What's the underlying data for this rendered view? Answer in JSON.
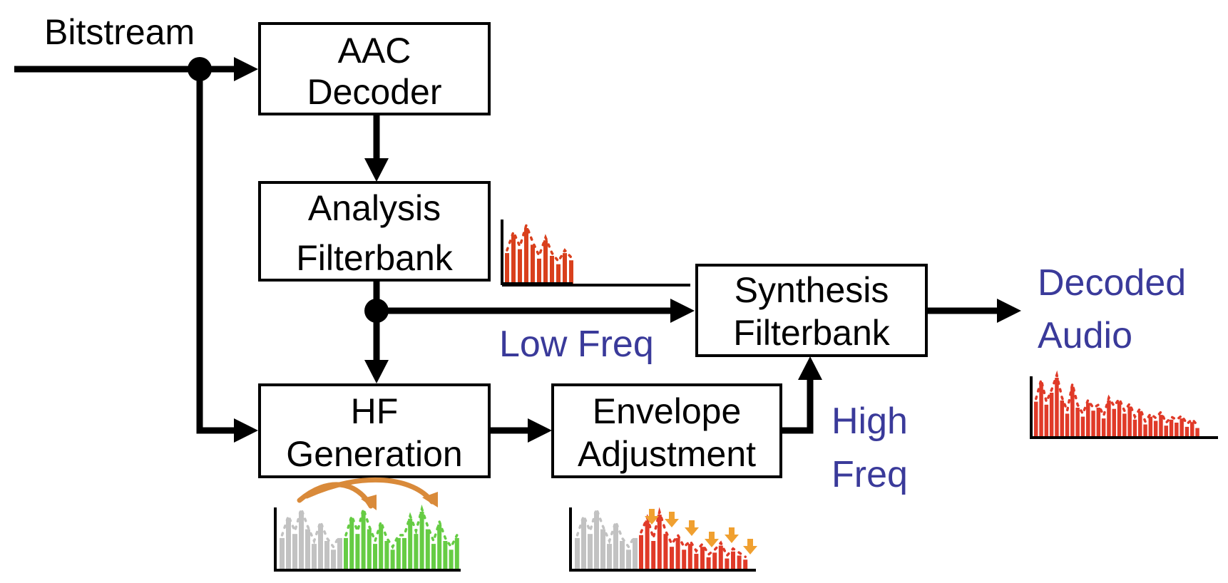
{
  "blocks": {
    "aac_decoder": [
      "AAC",
      "Decoder"
    ],
    "analysis_filterbank": [
      "Analysis",
      "Filterbank"
    ],
    "synthesis_filterbank": [
      "Synthesis",
      "Filterbank"
    ],
    "hf_generation": [
      "HF",
      "Generation"
    ],
    "envelope_adjustment": [
      "Envelope",
      "Adjustment"
    ]
  },
  "labels": {
    "bitstream": "Bitstream",
    "low_freq": "Low Freq",
    "high_freq": [
      "High",
      "Freq"
    ],
    "decoded_audio": [
      "Decoded",
      "Audio"
    ]
  },
  "colors": {
    "line": "#000000",
    "label_blue": "#3a3a9a",
    "low_band": "#d9401d",
    "gray_band": "#c2c2c2",
    "green_band": "#66cc44",
    "hf_copy_arrow": "#d98a3a",
    "gain_arrow": "#f0a030",
    "output_band": "#e03a28"
  },
  "spectra": {
    "low_band": [
      0.55,
      0.88,
      0.62,
      1.0,
      0.7,
      0.45,
      0.78,
      0.5,
      0.35,
      0.55,
      0.42
    ],
    "hf_generation": {
      "gray": [
        0.55,
        0.88,
        0.62,
        1.0,
        0.7,
        0.45,
        0.78,
        0.5,
        0.35,
        0.55
      ],
      "green": [
        0.55,
        0.88,
        0.62,
        1.0,
        0.7,
        0.45,
        0.78,
        0.5,
        0.35,
        0.55,
        0.55,
        0.88,
        0.62,
        1.0,
        0.7,
        0.45,
        0.78,
        0.5,
        0.35,
        0.55
      ]
    },
    "envelope_adjustment": {
      "gray": [
        0.55,
        0.88,
        0.62,
        1.0,
        0.7,
        0.45,
        0.78,
        0.5,
        0.35,
        0.55
      ],
      "red": [
        0.6,
        0.85,
        0.5,
        0.95,
        0.62,
        0.4,
        0.55,
        0.35,
        0.45,
        0.28,
        0.4,
        0.22,
        0.3,
        0.42,
        0.2,
        0.32,
        0.25,
        0.18
      ]
    },
    "decoded_audio": [
      0.6,
      0.92,
      0.55,
      0.75,
      1.0,
      0.62,
      0.4,
      0.85,
      0.5,
      0.35,
      0.58,
      0.45,
      0.5,
      0.32,
      0.62,
      0.48,
      0.6,
      0.4,
      0.52,
      0.3,
      0.44,
      0.22,
      0.35,
      0.28,
      0.38,
      0.2,
      0.3,
      0.25,
      0.32,
      0.18,
      0.26,
      0.16
    ]
  }
}
